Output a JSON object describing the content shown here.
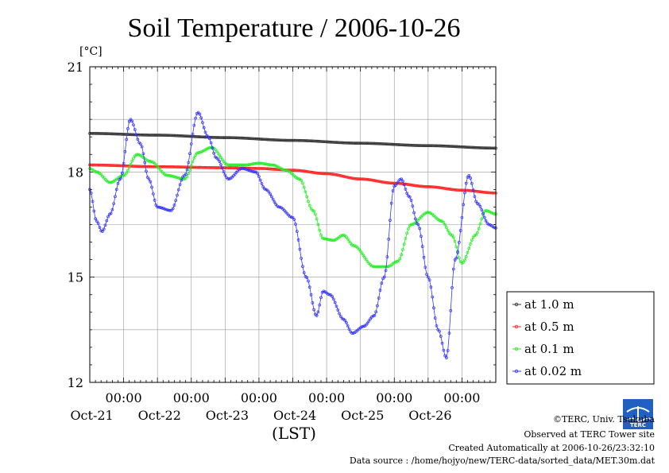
{
  "chart_data": {
    "type": "line",
    "title": "Soil Temperature / 2006-10-26",
    "ylabel": "[°C]",
    "xlabel": "(LST)",
    "ylim": [
      12,
      21
    ],
    "yticks": [
      12,
      15,
      18,
      21
    ],
    "xlim_days": [
      0,
      6
    ],
    "xtick_labels": [
      {
        "time": "00:00",
        "date": "Oct-21"
      },
      {
        "time": "00:00",
        "date": "Oct-22"
      },
      {
        "time": "00:00",
        "date": "Oct-23"
      },
      {
        "time": "00:00",
        "date": "Oct-24"
      },
      {
        "time": "00:00",
        "date": "Oct-25"
      },
      {
        "time": "00:00",
        "date": "Oct-26"
      }
    ],
    "grid": true,
    "legend_position": "right",
    "series": [
      {
        "name": "at 1.0 m",
        "color": "#333333",
        "x": [
          0,
          1,
          2,
          3,
          4,
          5,
          6
        ],
        "y": [
          19.1,
          19.05,
          18.98,
          18.9,
          18.82,
          18.75,
          18.68
        ]
      },
      {
        "name": "at 0.5 m",
        "color": "#ff2020",
        "x": [
          0,
          1,
          2,
          2.5,
          3,
          3.5,
          4,
          4.5,
          5,
          5.5,
          6
        ],
        "y": [
          18.2,
          18.15,
          18.12,
          18.1,
          18.05,
          17.95,
          17.8,
          17.68,
          17.58,
          17.48,
          17.4
        ]
      },
      {
        "name": "at 0.1 m",
        "color": "#22ee22",
        "x": [
          0,
          0.1,
          0.3,
          0.5,
          0.7,
          0.9,
          1.15,
          1.4,
          1.6,
          1.8,
          2.05,
          2.3,
          2.5,
          2.7,
          2.9,
          3.1,
          3.3,
          3.45,
          3.6,
          3.75,
          3.9,
          4.2,
          4.4,
          4.55,
          4.75,
          5.0,
          5.2,
          5.35,
          5.5,
          5.7,
          5.85,
          6.0
        ],
        "y": [
          18.1,
          18.0,
          17.7,
          17.9,
          18.5,
          18.3,
          17.9,
          17.8,
          18.55,
          18.7,
          18.2,
          18.2,
          18.25,
          18.2,
          18.05,
          17.8,
          16.9,
          16.1,
          16.05,
          16.2,
          15.9,
          15.3,
          15.3,
          15.45,
          16.5,
          16.85,
          16.6,
          16.2,
          15.4,
          16.2,
          16.9,
          16.8
        ]
      },
      {
        "name": "at 0.02 m",
        "color": "#3333ff",
        "x": [
          0,
          0.1,
          0.18,
          0.3,
          0.45,
          0.6,
          0.75,
          0.87,
          1.0,
          1.2,
          1.4,
          1.6,
          1.75,
          1.87,
          2.05,
          2.25,
          2.45,
          2.6,
          2.8,
          3.0,
          3.2,
          3.35,
          3.45,
          3.55,
          3.75,
          3.88,
          4.05,
          4.2,
          4.35,
          4.5,
          4.6,
          4.72,
          4.85,
          5.0,
          5.15,
          5.27,
          5.4,
          5.6,
          5.73,
          5.9,
          6.0
        ],
        "y": [
          17.5,
          16.6,
          16.3,
          16.8,
          17.8,
          19.5,
          18.8,
          17.8,
          17.0,
          16.9,
          17.9,
          19.7,
          19.0,
          18.4,
          17.8,
          18.1,
          18.0,
          17.5,
          17.0,
          16.7,
          15.0,
          13.9,
          14.6,
          14.5,
          13.8,
          13.4,
          13.6,
          13.9,
          15.0,
          17.6,
          17.8,
          17.3,
          16.5,
          15.0,
          13.5,
          12.7,
          15.5,
          17.9,
          17.1,
          16.5,
          16.4
        ]
      }
    ]
  },
  "credits": {
    "line1": "©TERC, Univ. Tsukuba",
    "line2": "Observed at TERC Tower site",
    "line3": "Created Automatically at 2006-10-26/23:32:10",
    "line4": "Data source : /home/hojyo/new/TERC-data/sorted_data/MET.30m.dat"
  },
  "logo": {
    "text": "TERC",
    "color": "#2060c0"
  }
}
